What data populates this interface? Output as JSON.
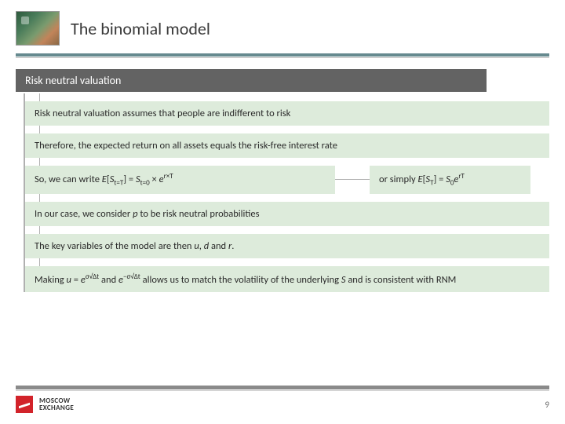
{
  "colors": {
    "bar_bg": "#ddebdb",
    "section_head_bg": "#636363",
    "accent_rule": "#668a8f",
    "footer_rule": "#8a8a8a",
    "brand_red": "#d2232a"
  },
  "header": {
    "title": "The binomial model"
  },
  "section": {
    "title": "Risk neutral valuation",
    "items": {
      "b1": "Risk neutral valuation assumes that people are indifferent to risk",
      "b2": "Therefore, the expected return on all assets equals the risk-free interest rate",
      "b3a_prefix": "So, we can write ",
      "b3b_prefix": "or simply  ",
      "b4_prefix": "In our case, we consider ",
      "b4_var": "p",
      "b4_suffix": " to be risk neutral probabilities",
      "b5_prefix": "The key variables of the model are then ",
      "b5_u": "u",
      "b5_sep1": ", ",
      "b5_d": "d",
      "b5_sep2": " and ",
      "b5_r": "r",
      "b5_suffix": ".",
      "b6_prefix": "Making ",
      "b6_mid": " and ",
      "b6_suffix": " allows us to match the volatility of the underlying  ",
      "b6_S": "S",
      "b6_tail": " and is consistent with RNM"
    },
    "math": {
      "E": "E",
      "S": "S",
      "eq": " = ",
      "times": " × ",
      "e": "e",
      "lbr": "[",
      "rbr": "]",
      "sub_tT": "t=T",
      "sub_t0": "t=0",
      "sub_T": "T",
      "sub_0": "0",
      "sup_rxT": "r×T",
      "sup_rT": "rT",
      "u": "u",
      "d": "d",
      "sup_sig_pos": "σ√Δt",
      "sup_sig_neg": "−σ√Δt"
    }
  },
  "footer": {
    "brand_line1": "MOSCOW",
    "brand_line2": "EXCHANGE",
    "page": "9"
  }
}
